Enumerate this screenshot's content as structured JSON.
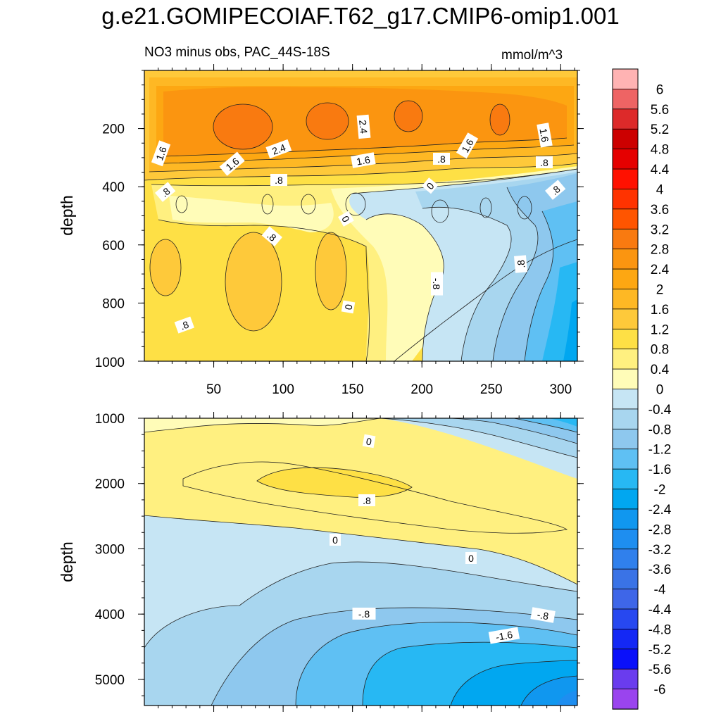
{
  "title": "g.e21.GOMIPECOIAF.T62_g17.CMIP6-omip1.001",
  "chart_data": {
    "type": "heatmap",
    "subtitle": "NO3 minus obs, PAC_44S-18S",
    "units": "mmol/m^3",
    "x_axis": {
      "range": [
        0,
        312
      ],
      "tick_labels": [
        "50",
        "100",
        "150",
        "200",
        "250",
        "300"
      ]
    },
    "panels": [
      {
        "name": "upper",
        "ylabel": "depth",
        "ylim": [
          0,
          1000
        ],
        "y_tick_labels": [
          "200",
          "400",
          "600",
          "800",
          "1000"
        ],
        "contour_labels": [
          "1.6",
          "1.6",
          "2.4",
          "2.4",
          "1.6",
          ".8",
          "1.6",
          "1.6",
          ".8",
          ".8",
          ".8",
          "0",
          ".8",
          "0",
          ".8",
          "-.8",
          "0",
          ".8",
          ".8"
        ]
      },
      {
        "name": "lower",
        "ylabel": "depth",
        "ylim": [
          1000,
          5400
        ],
        "y_tick_labels": [
          "1000",
          "2000",
          "3000",
          "4000",
          "5000"
        ],
        "contour_labels": [
          "0",
          ".8",
          "0",
          "0",
          "-.8",
          "-.8",
          "-1.6"
        ]
      }
    ],
    "colorbar": {
      "labels": [
        "6",
        "5.6",
        "5.2",
        "4.8",
        "4.4",
        "4",
        "3.6",
        "3.2",
        "2.8",
        "2.4",
        "2",
        "1.6",
        "1.2",
        "0.8",
        "0.4",
        "0",
        "-0.4",
        "-0.8",
        "-1.2",
        "-1.6",
        "-2",
        "-2.4",
        "-2.8",
        "-3.2",
        "-3.6",
        "-4",
        "-4.4",
        "-4.8",
        "-5.2",
        "-5.6",
        "-6"
      ],
      "colors": [
        "#ffb3b3",
        "#ee6464",
        "#dd2a2a",
        "#cc0000",
        "#e50000",
        "#ff1100",
        "#ff3300",
        "#ff5500",
        "#f97a10",
        "#fb9510",
        "#fda712",
        "#feb824",
        "#fec93a",
        "#fee045",
        "#fff080",
        "#fffcb8",
        "#c6e5f4",
        "#a8d6ef",
        "#8ec8ee",
        "#5fc0f3",
        "#27b8f3",
        "#01a7f0",
        "#1097ef",
        "#1e8ef0",
        "#3080ec",
        "#3a73e6",
        "#3e66e8",
        "#2748f0",
        "#1428f5",
        "#0a10fa",
        "#6a3cee",
        "#9a44ee"
      ]
    }
  }
}
